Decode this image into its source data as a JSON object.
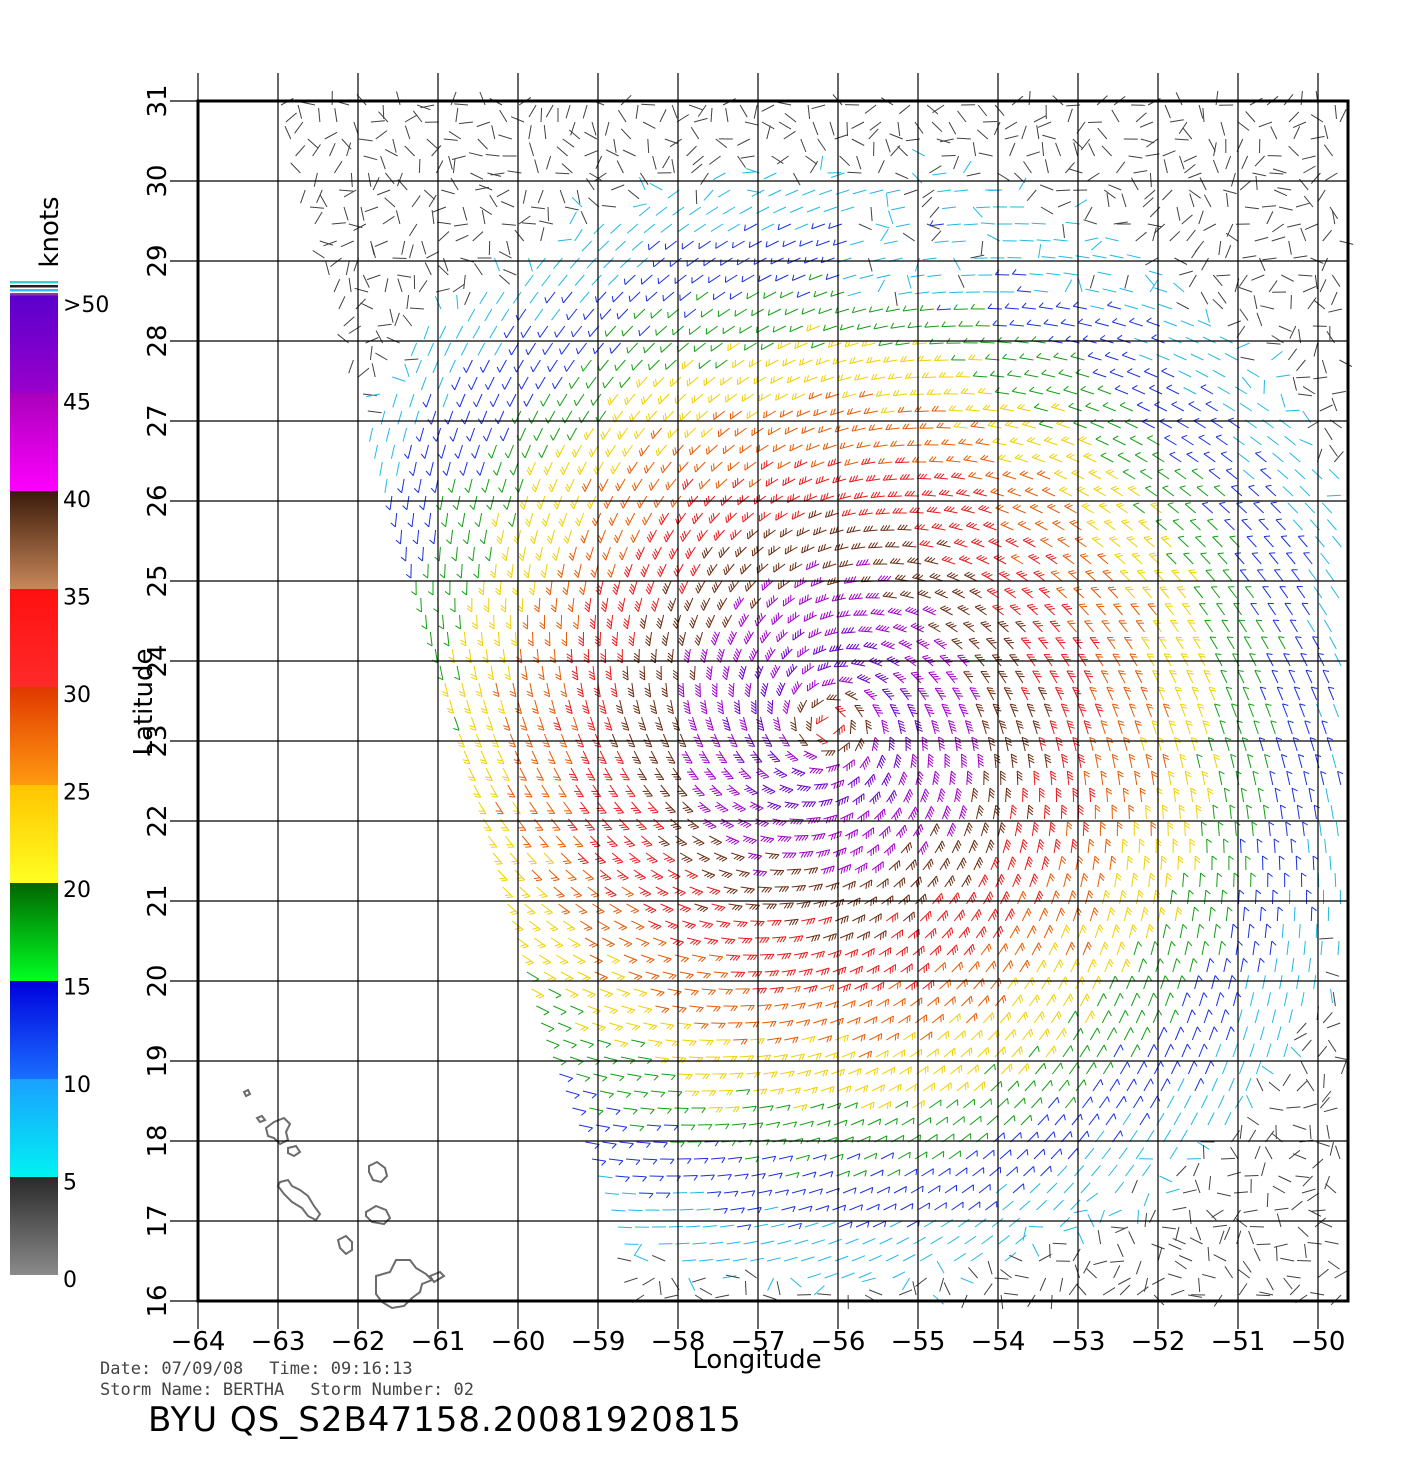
{
  "map": {
    "lon_range": [
      -64,
      -49.6
    ],
    "lat_range": [
      16,
      31
    ],
    "lon_ticks": [
      "-64",
      "-63",
      "-62",
      "-61",
      "-60",
      "-59",
      "-58",
      "-57",
      "-56",
      "-55",
      "-54",
      "-53",
      "-52",
      "-51",
      "-50"
    ],
    "lat_ticks": [
      "16",
      "17",
      "18",
      "19",
      "20",
      "21",
      "22",
      "23",
      "24",
      "25",
      "26",
      "27",
      "28",
      "29",
      "30",
      "31"
    ],
    "xlabel": "Longitude",
    "ylabel": "Latitude",
    "storm_center": {
      "lon": -56.1,
      "lat": 23.2
    },
    "frame_color": "#000000",
    "coast_color": "#6b6b6b"
  },
  "colorbar": {
    "unit": "knots",
    "labels": [
      ">50",
      "45",
      "40",
      "35",
      "30",
      "25",
      "20",
      "15",
      "10",
      "5",
      "0"
    ],
    "segments": [
      {
        "range": "0-5",
        "top": "#2a2a2a",
        "bottom": "#8a8a8a"
      },
      {
        "range": "5-10",
        "top": "#1aa0ff",
        "bottom": "#00f2f2"
      },
      {
        "range": "10-15",
        "top": "#0000dd",
        "bottom": "#1a6fff"
      },
      {
        "range": "15-20",
        "top": "#006600",
        "bottom": "#00ff22"
      },
      {
        "range": "20-25",
        "top": "#ffc400",
        "bottom": "#ffff22"
      },
      {
        "range": "25-30",
        "top": "#e03800",
        "bottom": "#ff9a10"
      },
      {
        "range": "30-35",
        "top": "#ff1010",
        "bottom": "#ff2a2a"
      },
      {
        "range": "35-40",
        "top": "#3a1a0a",
        "bottom": "#c8885a"
      },
      {
        "range": "40-45",
        "top": "#aa00bb",
        "bottom": "#ff00ff"
      },
      {
        "range": "45-50",
        "top": "#5a00cc",
        "bottom": "#9a00cc"
      }
    ]
  },
  "info": {
    "date": "Date: 07/09/08",
    "time": "Time: 09:16:13",
    "storm_name": "Storm Name: BERTHA",
    "storm_number": "Storm Number: 02",
    "id": "BYU QS_S2B47158.20081920815"
  }
}
